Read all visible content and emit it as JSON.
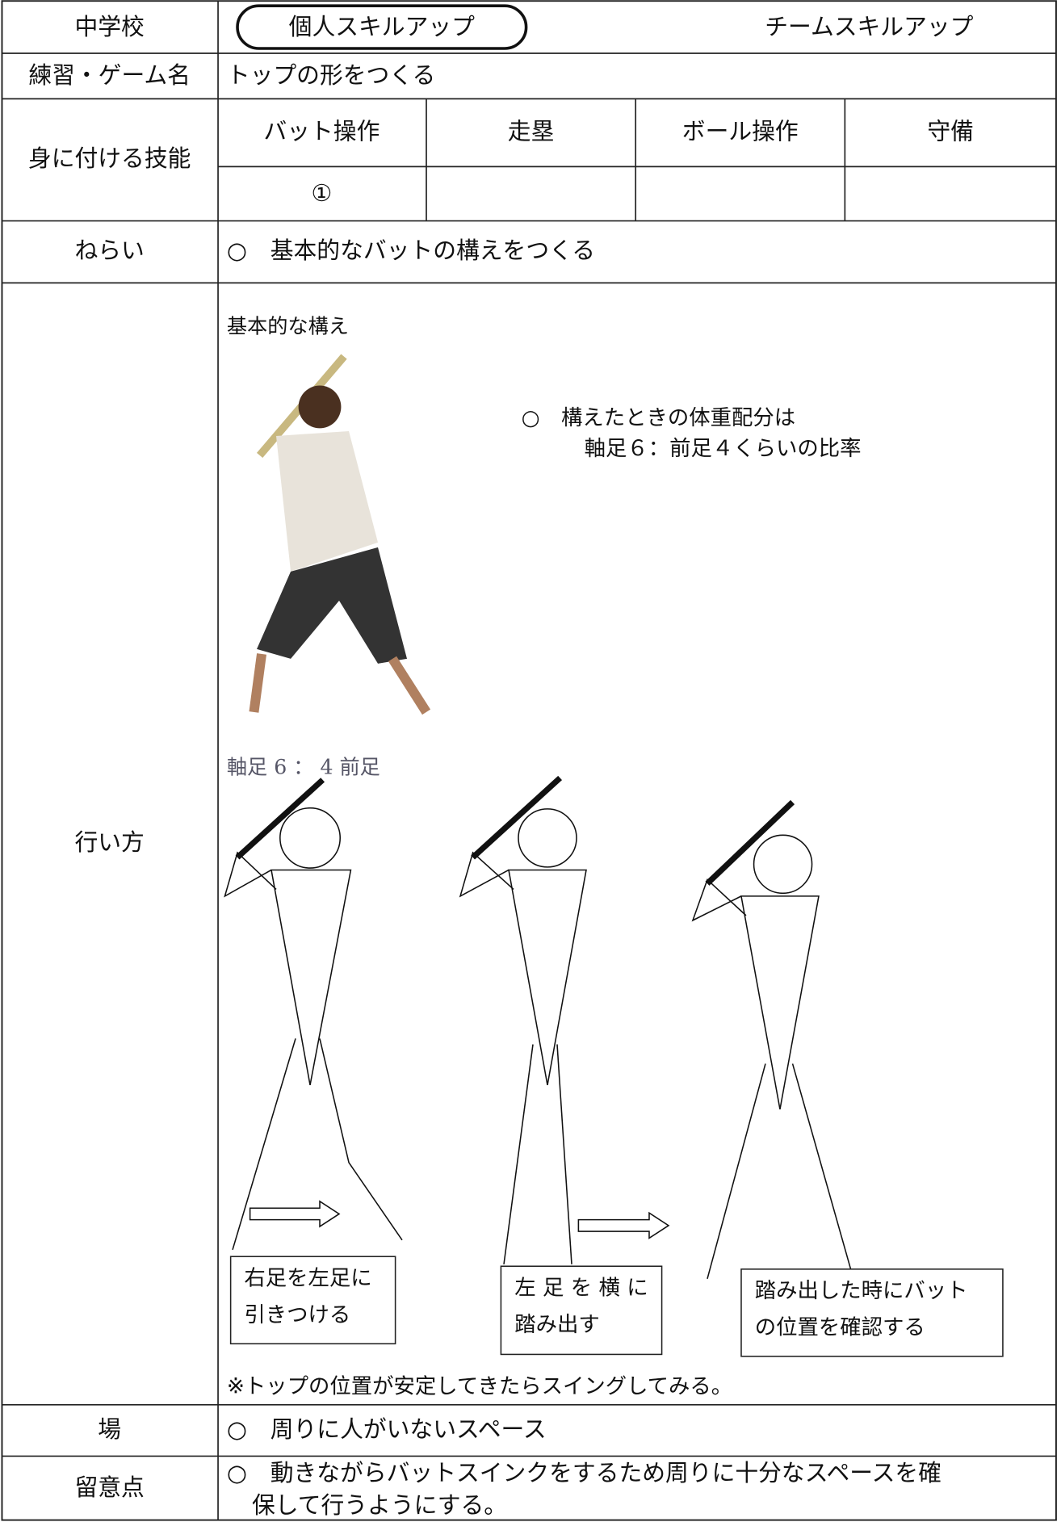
{
  "header": {
    "school_label": "中学校",
    "option_individual": "個人スキルアップ",
    "option_team": "チームスキルアップ"
  },
  "name": {
    "label": "練習・ゲーム名",
    "value": "トップの形をつくる"
  },
  "skills": {
    "label": "身に付ける技能",
    "columns": [
      "バット操作",
      "走塁",
      "ボール操作",
      "守備"
    ],
    "bat_mark": "①"
  },
  "aim": {
    "label": "ねらい",
    "text": "○　基本的なバットの構えをつくる"
  },
  "method": {
    "label": "行い方",
    "heading": "基本的な構え",
    "weight_note": [
      "○　構えたときの体重配分は",
      "軸足６：前足４くらいの比率"
    ],
    "ratio_caption": "軸足 6 ： 4 前足",
    "steps": [
      [
        "右足を左足に",
        "引きつける"
      ],
      [
        "左 足 を 横 に",
        "踏み出す"
      ],
      [
        "踏み出した時にバット",
        "の位置を確認する"
      ]
    ],
    "footnote": "※トップの位置が安定してきたらスイングしてみる。"
  },
  "place": {
    "label": "場",
    "text": "○　周りに人がいないスペース"
  },
  "notes": {
    "label": "留意点",
    "lines": [
      "○　動きながらバットスインクをするため周りに十分なスペースを確",
      "保して行うようにする。"
    ]
  }
}
